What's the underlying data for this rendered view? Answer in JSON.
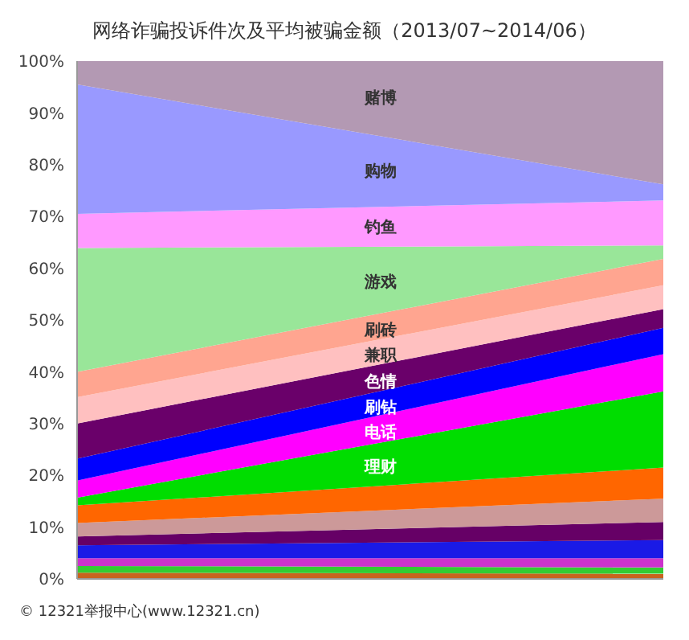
{
  "chart_data": {
    "type": "area",
    "stacked": true,
    "title": "网络诈骗投诉件次及平均被骗金额（2013/07~2014/06）",
    "categories": [
      null,
      null
    ],
    "series": [
      {
        "color": "#c8641e",
        "values": [
          1.2,
          1
        ]
      },
      {
        "color": "#33cc33",
        "values": [
          1.3,
          1.2
        ]
      },
      {
        "color": "#cc33cc",
        "values": [
          1.5,
          1.8
        ]
      },
      {
        "color": "#1a1ae6",
        "values": [
          2.5,
          3.5
        ]
      },
      {
        "color": "#660066",
        "values": [
          1.7,
          3.5
        ]
      },
      {
        "color": "#cc9999",
        "values": [
          2.6,
          4.5
        ]
      },
      {
        "color": "#ff6600",
        "values": [
          3.4,
          6
        ]
      },
      {
        "name": "理财",
        "color": "#00dd00",
        "values": [
          1.5,
          14.7
        ]
      },
      {
        "name": "电话",
        "color": "#ff00ff",
        "values": [
          3.3,
          7.2
        ]
      },
      {
        "name": "刷钻",
        "color": "#0000ff",
        "values": [
          4.2,
          5.1
        ]
      },
      {
        "name": "色情",
        "color": "#6a006a",
        "values": [
          6.8,
          3.6
        ]
      },
      {
        "name": "兼职",
        "color": "#ffc0c0",
        "values": [
          5.1,
          4.6
        ]
      },
      {
        "name": "刷砖",
        "color": "#ffa590",
        "values": [
          4.9,
          5.1
        ]
      },
      {
        "name": "游戏",
        "color": "#99e699",
        "values": [
          23.9,
          2.6
        ]
      },
      {
        "name": "钓鱼",
        "color": "#ff99ff",
        "values": [
          6.6,
          8.7
        ]
      },
      {
        "name": "购物",
        "color": "#9999ff",
        "values": [
          25,
          3.1
        ]
      },
      {
        "name": "赌博",
        "color": "#b399b3",
        "values": [
          4.5,
          23.8
        ]
      }
    ],
    "ylim": [
      0,
      100
    ],
    "yticks": [
      {
        "value": 0,
        "label": "0%"
      },
      {
        "value": 10,
        "label": "10%"
      },
      {
        "value": 20,
        "label": "20%"
      },
      {
        "value": 30,
        "label": "30%"
      },
      {
        "value": 40,
        "label": "40%"
      },
      {
        "value": 50,
        "label": "50%"
      },
      {
        "value": 60,
        "label": "60%"
      },
      {
        "value": 70,
        "label": "70%"
      },
      {
        "value": 80,
        "label": "80%"
      },
      {
        "value": 90,
        "label": "90%"
      },
      {
        "value": 100,
        "label": "100%"
      }
    ],
    "grid": false,
    "legend": false,
    "annotations": [
      "© 12321举报中心(www.12321.cn)"
    ]
  }
}
